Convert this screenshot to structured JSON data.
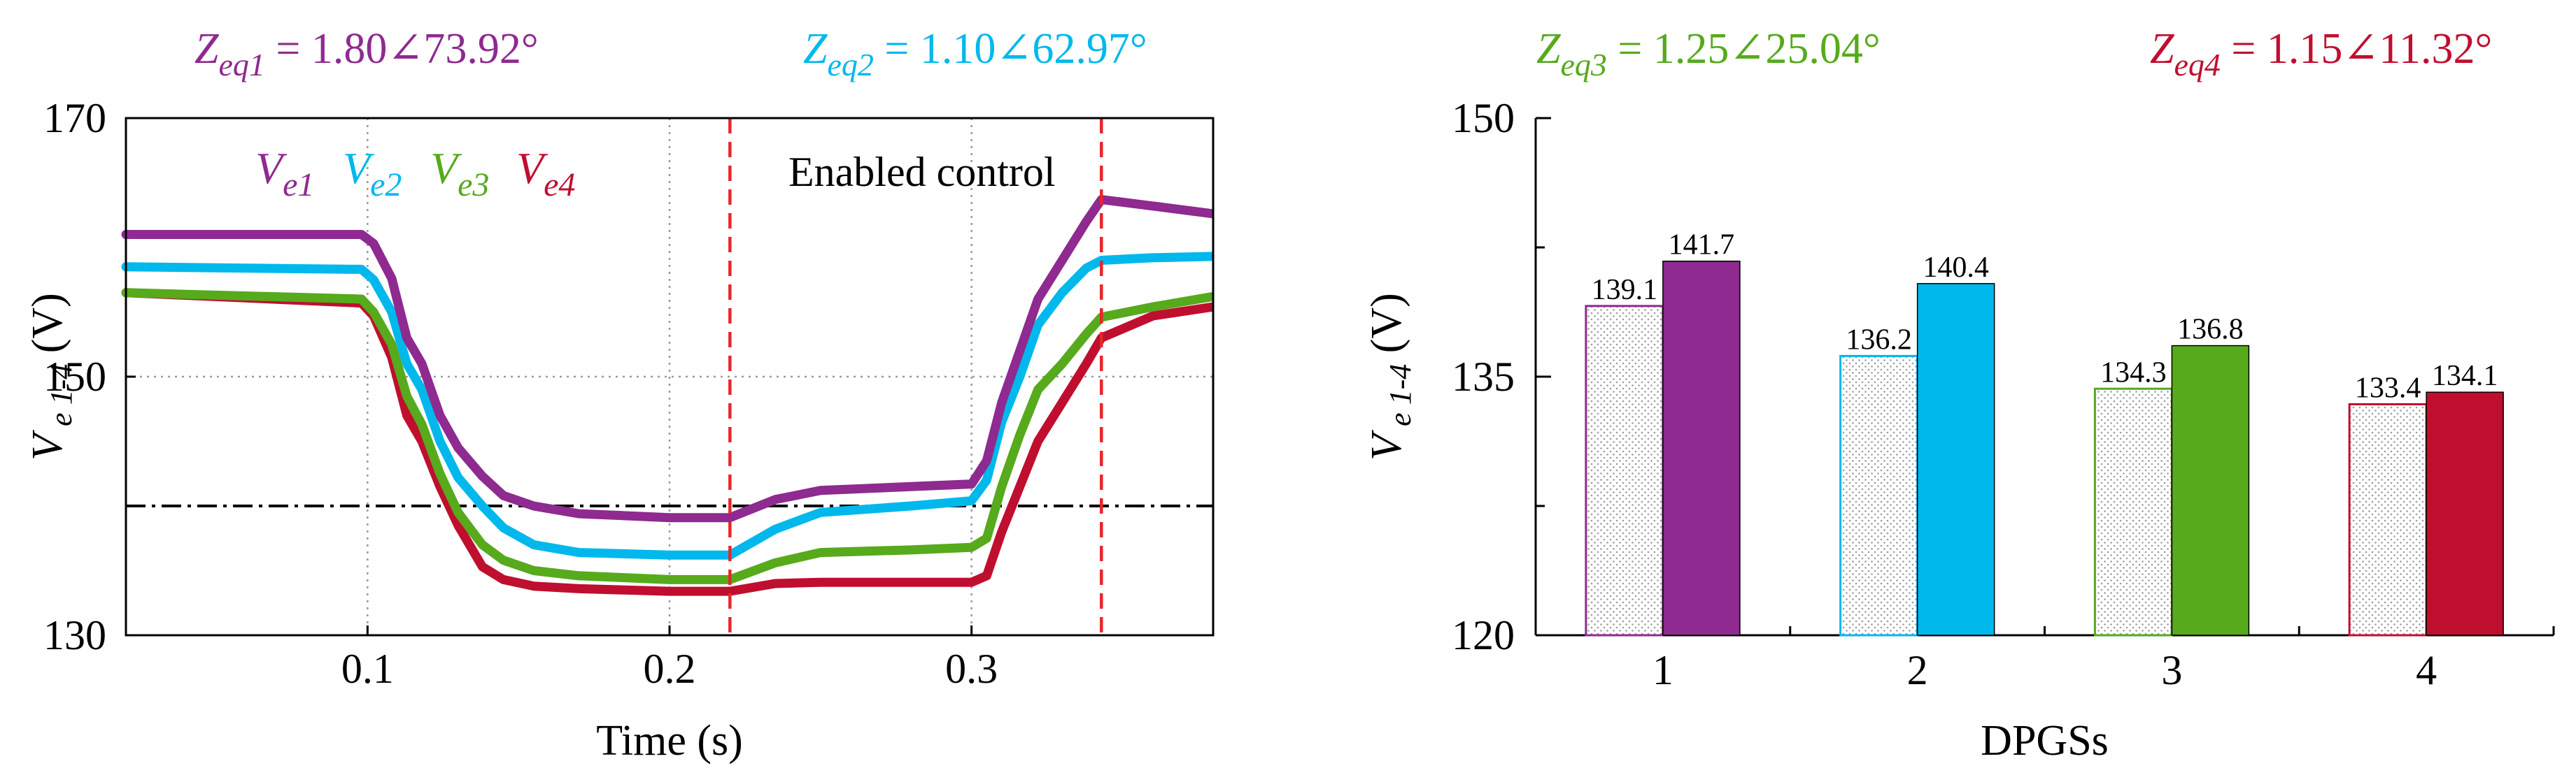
{
  "colors": {
    "series1": "#8e2a90",
    "series2": "#00b8ec",
    "series3": "#56aa1c",
    "series4": "#c00e2f",
    "marker": "#e8262a",
    "reference": "#000000",
    "grid": "#9a9a9a"
  },
  "chart_data": [
    {
      "type": "line",
      "ylabel": {
        "base": "V",
        "sub": "e 1-4",
        "unit": "(V)"
      },
      "xlabel": "Time (s)",
      "xlim": [
        0.02,
        0.38
      ],
      "ylim": [
        130,
        170
      ],
      "xticks": [
        0.1,
        0.2,
        0.3
      ],
      "xtick_labels": [
        "0.1",
        "0.2",
        "0.3"
      ],
      "yticks": [
        130,
        150,
        170
      ],
      "ytick_labels": [
        "130",
        "150",
        "170"
      ],
      "grid": true,
      "reference_line": 140,
      "markers": [
        0.22,
        0.343
      ],
      "annotation": "Enabled control",
      "impedances": [
        {
          "prefix": "Z",
          "sub": "eq1",
          "value": " = 1.80∠73.92°",
          "series": 1
        },
        {
          "prefix": "Z",
          "sub": "eq2",
          "value": " = 1.10∠62.97°",
          "series": 2
        }
      ],
      "series": [
        {
          "name": "V",
          "sub": "e1",
          "points": [
            [
              0.02,
              161.0
            ],
            [
              0.098,
              161.0
            ],
            [
              0.102,
              160.3
            ],
            [
              0.108,
              157.6
            ],
            [
              0.113,
              153.0
            ],
            [
              0.118,
              151.0
            ],
            [
              0.124,
              147.0
            ],
            [
              0.13,
              144.5
            ],
            [
              0.138,
              142.3
            ],
            [
              0.145,
              140.8
            ],
            [
              0.155,
              140.0
            ],
            [
              0.17,
              139.4
            ],
            [
              0.2,
              139.1
            ],
            [
              0.22,
              139.1
            ],
            [
              0.235,
              140.5
            ],
            [
              0.25,
              141.2
            ],
            [
              0.28,
              141.5
            ],
            [
              0.3,
              141.7
            ],
            [
              0.305,
              143.5
            ],
            [
              0.31,
              148.0
            ],
            [
              0.316,
              152.0
            ],
            [
              0.322,
              156.0
            ],
            [
              0.33,
              159.0
            ],
            [
              0.338,
              162.0
            ],
            [
              0.343,
              163.7
            ],
            [
              0.35,
              163.5
            ],
            [
              0.36,
              163.2
            ],
            [
              0.38,
              162.6
            ]
          ]
        },
        {
          "name": "V",
          "sub": "e2",
          "points": [
            [
              0.02,
              158.5
            ],
            [
              0.098,
              158.3
            ],
            [
              0.102,
              157.5
            ],
            [
              0.108,
              155.0
            ],
            [
              0.113,
              151.0
            ],
            [
              0.118,
              149.0
            ],
            [
              0.124,
              145.0
            ],
            [
              0.13,
              142.2
            ],
            [
              0.138,
              140.0
            ],
            [
              0.145,
              138.3
            ],
            [
              0.155,
              137.0
            ],
            [
              0.17,
              136.4
            ],
            [
              0.2,
              136.2
            ],
            [
              0.22,
              136.2
            ],
            [
              0.235,
              138.2
            ],
            [
              0.25,
              139.5
            ],
            [
              0.28,
              140.0
            ],
            [
              0.3,
              140.4
            ],
            [
              0.305,
              142.0
            ],
            [
              0.31,
              146.5
            ],
            [
              0.316,
              150.0
            ],
            [
              0.322,
              154.0
            ],
            [
              0.33,
              156.5
            ],
            [
              0.338,
              158.4
            ],
            [
              0.343,
              159.0
            ],
            [
              0.36,
              159.2
            ],
            [
              0.38,
              159.3
            ]
          ]
        },
        {
          "name": "V",
          "sub": "e3",
          "points": [
            [
              0.02,
              156.5
            ],
            [
              0.098,
              156.0
            ],
            [
              0.102,
              155.0
            ],
            [
              0.108,
              152.5
            ],
            [
              0.113,
              148.5
            ],
            [
              0.118,
              146.3
            ],
            [
              0.124,
              142.5
            ],
            [
              0.13,
              139.5
            ],
            [
              0.138,
              137.0
            ],
            [
              0.145,
              135.8
            ],
            [
              0.155,
              135.0
            ],
            [
              0.17,
              134.6
            ],
            [
              0.2,
              134.3
            ],
            [
              0.22,
              134.3
            ],
            [
              0.235,
              135.6
            ],
            [
              0.25,
              136.4
            ],
            [
              0.28,
              136.6
            ],
            [
              0.3,
              136.8
            ],
            [
              0.305,
              137.5
            ],
            [
              0.31,
              141.5
            ],
            [
              0.316,
              145.5
            ],
            [
              0.322,
              149.0
            ],
            [
              0.33,
              151.0
            ],
            [
              0.338,
              153.3
            ],
            [
              0.343,
              154.6
            ],
            [
              0.36,
              155.4
            ],
            [
              0.38,
              156.2
            ]
          ]
        },
        {
          "name": "V",
          "sub": "e4",
          "points": [
            [
              0.02,
              156.5
            ],
            [
              0.098,
              155.7
            ],
            [
              0.102,
              154.7
            ],
            [
              0.108,
              151.5
            ],
            [
              0.113,
              147.0
            ],
            [
              0.118,
              145.0
            ],
            [
              0.124,
              141.5
            ],
            [
              0.13,
              138.5
            ],
            [
              0.138,
              135.3
            ],
            [
              0.145,
              134.3
            ],
            [
              0.155,
              133.8
            ],
            [
              0.17,
              133.6
            ],
            [
              0.2,
              133.4
            ],
            [
              0.22,
              133.4
            ],
            [
              0.235,
              134.0
            ],
            [
              0.25,
              134.1
            ],
            [
              0.28,
              134.1
            ],
            [
              0.3,
              134.1
            ],
            [
              0.305,
              134.6
            ],
            [
              0.31,
              138.0
            ],
            [
              0.316,
              141.5
            ],
            [
              0.322,
              145.0
            ],
            [
              0.33,
              148.0
            ],
            [
              0.338,
              151.0
            ],
            [
              0.343,
              153.0
            ],
            [
              0.36,
              154.7
            ],
            [
              0.38,
              155.4
            ]
          ]
        }
      ]
    },
    {
      "type": "bar",
      "ylabel": {
        "base": "V",
        "sub": "e 1-4",
        "unit": "(V)"
      },
      "xlabel": "DPGSs",
      "categories": [
        "1",
        "2",
        "3",
        "4"
      ],
      "ylim": [
        120,
        150
      ],
      "yticks": [
        120,
        135,
        150
      ],
      "ytick_labels": [
        "120",
        "135",
        "150"
      ],
      "grid": false,
      "impedances": [
        {
          "prefix": "Z",
          "sub": "eq3",
          "value": " = 1.25∠25.04°",
          "series": 3
        },
        {
          "prefix": "Z",
          "sub": "eq4",
          "value": " = 1.15∠11.32°",
          "series": 4
        }
      ],
      "series": [
        {
          "style": "hatched",
          "values": [
            139.1,
            136.2,
            134.3,
            133.4
          ],
          "labels": [
            "139.1",
            "136.2",
            "134.3",
            "133.4"
          ]
        },
        {
          "style": "solid",
          "values": [
            141.7,
            140.4,
            136.8,
            134.1
          ],
          "labels": [
            "141.7",
            "140.4",
            "136.8",
            "134.1"
          ]
        }
      ]
    }
  ]
}
